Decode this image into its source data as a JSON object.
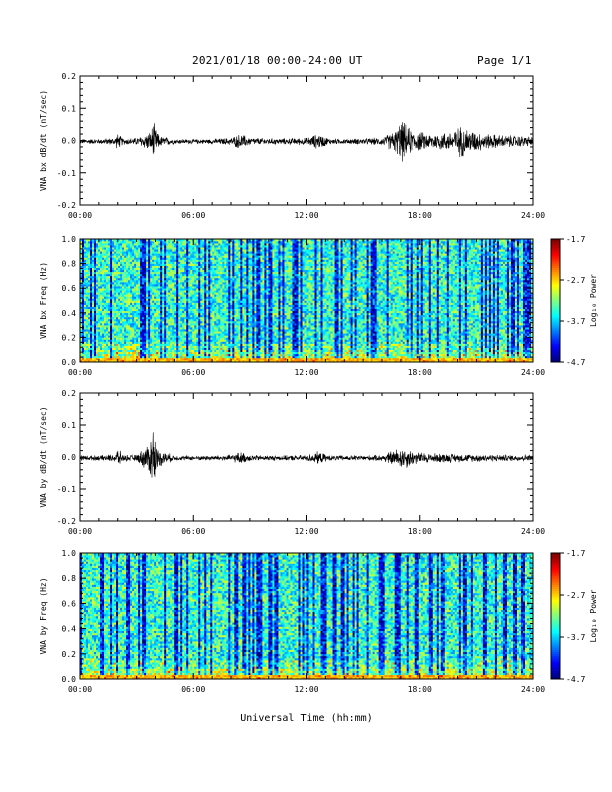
{
  "header": {
    "title": "2021/01/18  00:00-24:00 UT",
    "page": "Page 1/1"
  },
  "footer": {
    "xlabel": "Universal Time (hh:mm)"
  },
  "chart_data": [
    {
      "id": "bx-timeseries",
      "type": "line",
      "ylabel": "VNA bx dB/dt (nT/sec)",
      "ylim": [
        -0.2,
        0.2
      ],
      "yticks": [
        "-0.2",
        "-0.1",
        "0.0",
        "0.1",
        "0.2"
      ],
      "xticks": [
        "00:00",
        "06:00",
        "12:00",
        "18:00",
        "24:00"
      ],
      "xlim_hours": [
        0,
        24
      ],
      "series": [
        {
          "color": "#000000",
          "envelope": [
            [
              0.0,
              0.008
            ],
            [
              1.0,
              0.008
            ],
            [
              1.8,
              0.012
            ],
            [
              2.0,
              0.025
            ],
            [
              2.3,
              0.01
            ],
            [
              3.0,
              0.012
            ],
            [
              3.7,
              0.03
            ],
            [
              3.9,
              0.06
            ],
            [
              4.2,
              0.018
            ],
            [
              5.0,
              0.008
            ],
            [
              6.0,
              0.007
            ],
            [
              7.0,
              0.008
            ],
            [
              8.0,
              0.012
            ],
            [
              8.5,
              0.025
            ],
            [
              9.0,
              0.012
            ],
            [
              10.0,
              0.01
            ],
            [
              11.0,
              0.01
            ],
            [
              12.0,
              0.012
            ],
            [
              12.6,
              0.025
            ],
            [
              13.2,
              0.01
            ],
            [
              14.0,
              0.008
            ],
            [
              15.0,
              0.01
            ],
            [
              16.0,
              0.012
            ],
            [
              16.8,
              0.04
            ],
            [
              17.0,
              0.07
            ],
            [
              17.6,
              0.035
            ],
            [
              18.5,
              0.025
            ],
            [
              19.5,
              0.03
            ],
            [
              20.2,
              0.05
            ],
            [
              20.8,
              0.035
            ],
            [
              21.5,
              0.025
            ],
            [
              22.5,
              0.02
            ],
            [
              23.5,
              0.018
            ],
            [
              24.0,
              0.015
            ]
          ]
        }
      ]
    },
    {
      "id": "bx-spectrogram",
      "type": "heatmap",
      "ylabel": "VNA bx Freq (Hz)",
      "ylim": [
        0.0,
        1.0
      ],
      "yticks": [
        "0.0",
        "0.2",
        "0.4",
        "0.6",
        "0.8",
        "1.0"
      ],
      "xticks": [
        "00:00",
        "06:00",
        "12:00",
        "18:00",
        "24:00"
      ],
      "colorbar": {
        "label": "Log₁₀ Power",
        "ticks": [
          "-1.7",
          "-2.7",
          "-3.7",
          "-4.7"
        ],
        "range": [
          -4.7,
          -1.7
        ]
      }
    },
    {
      "id": "by-timeseries",
      "type": "line",
      "ylabel": "VNA by dB/dt (nT/sec)",
      "ylim": [
        -0.2,
        0.2
      ],
      "yticks": [
        "-0.2",
        "-0.1",
        "0.0",
        "0.1",
        "0.2"
      ],
      "xticks": [
        "00:00",
        "06:00",
        "12:00",
        "18:00",
        "24:00"
      ],
      "xlim_hours": [
        0,
        24
      ],
      "series": [
        {
          "color": "#000000",
          "envelope": [
            [
              0.0,
              0.008
            ],
            [
              1.0,
              0.008
            ],
            [
              1.8,
              0.012
            ],
            [
              2.0,
              0.03
            ],
            [
              2.3,
              0.01
            ],
            [
              3.0,
              0.01
            ],
            [
              3.7,
              0.05
            ],
            [
              3.85,
              0.12
            ],
            [
              4.1,
              0.03
            ],
            [
              5.0,
              0.008
            ],
            [
              6.0,
              0.007
            ],
            [
              7.0,
              0.008
            ],
            [
              8.0,
              0.01
            ],
            [
              8.5,
              0.02
            ],
            [
              9.0,
              0.01
            ],
            [
              10.0,
              0.008
            ],
            [
              11.0,
              0.008
            ],
            [
              12.0,
              0.01
            ],
            [
              12.6,
              0.02
            ],
            [
              13.2,
              0.008
            ],
            [
              14.0,
              0.008
            ],
            [
              15.0,
              0.008
            ],
            [
              16.0,
              0.01
            ],
            [
              16.8,
              0.03
            ],
            [
              17.2,
              0.035
            ],
            [
              17.8,
              0.02
            ],
            [
              18.5,
              0.015
            ],
            [
              19.5,
              0.015
            ],
            [
              20.5,
              0.012
            ],
            [
              21.5,
              0.012
            ],
            [
              22.5,
              0.01
            ],
            [
              23.5,
              0.01
            ],
            [
              24.0,
              0.01
            ]
          ]
        }
      ]
    },
    {
      "id": "by-spectrogram",
      "type": "heatmap",
      "ylabel": "VNA by Freq (Hz)",
      "ylim": [
        0.0,
        1.0
      ],
      "yticks": [
        "0.0",
        "0.2",
        "0.4",
        "0.6",
        "0.8",
        "1.0"
      ],
      "xticks": [
        "00:00",
        "06:00",
        "12:00",
        "18:00",
        "24:00"
      ],
      "colorbar": {
        "label": "Log₁₀ Power",
        "ticks": [
          "-1.7",
          "-2.7",
          "-3.7",
          "-4.7"
        ],
        "range": [
          -4.7,
          -1.7
        ]
      }
    }
  ]
}
